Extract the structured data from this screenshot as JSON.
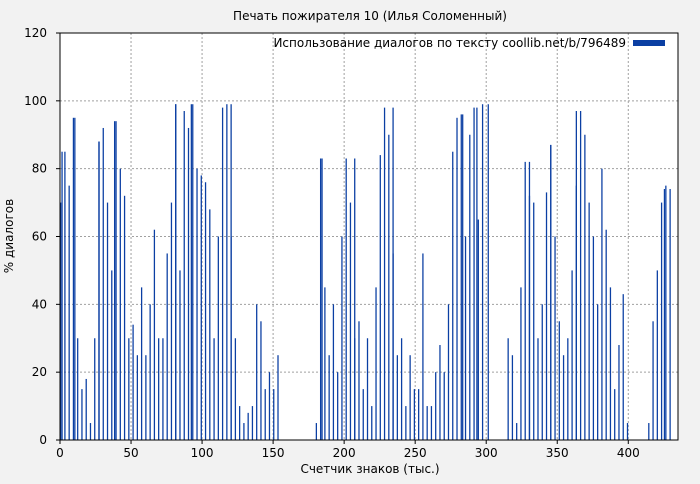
{
  "chart_data": {
    "type": "bar",
    "title": "Печать пожирателя 10 (Илья Соломенный)",
    "xlabel": "Счетчик знаков (тыс.)",
    "ylabel": "% диалогов",
    "xlim": [
      0,
      435
    ],
    "ylim": [
      0,
      120
    ],
    "x_ticks": [
      0,
      50,
      100,
      150,
      200,
      250,
      300,
      350,
      400
    ],
    "y_ticks": [
      0,
      20,
      40,
      60,
      80,
      100,
      120
    ],
    "grid": true,
    "legend_position": "top-right",
    "series": [
      {
        "name": "Использование диалогов по тексту coollib.net/b/796489",
        "color": "#0b3fa3",
        "bar_width": 0.9,
        "x": [
          0,
          3,
          6,
          9,
          12,
          15,
          18,
          21,
          24,
          27,
          30,
          33,
          36,
          39,
          42,
          45,
          48,
          51,
          54,
          57,
          60,
          63,
          66,
          69,
          72,
          75,
          78,
          81,
          84,
          87,
          90,
          93,
          96,
          99,
          102,
          105,
          108,
          111,
          114,
          117,
          120,
          123,
          126,
          129,
          132,
          135,
          138,
          141,
          144,
          147,
          150,
          153,
          156,
          159,
          162,
          165,
          168,
          171,
          174,
          177,
          180,
          183,
          186,
          189,
          192,
          195,
          198,
          201,
          204,
          207,
          210,
          213,
          216,
          219,
          222,
          225,
          228,
          231,
          234,
          237,
          240,
          243,
          246,
          249,
          252,
          255,
          258,
          261,
          264,
          267,
          270,
          273,
          276,
          279,
          282,
          285,
          288,
          291,
          294,
          297,
          300,
          303,
          306,
          309,
          312,
          315,
          318,
          321,
          324,
          327,
          330,
          333,
          336,
          339,
          342,
          345,
          348,
          351,
          354,
          357,
          360,
          363,
          366,
          369,
          372,
          375,
          378,
          381,
          384,
          387,
          390,
          393,
          396,
          399,
          402,
          405,
          408,
          411,
          414,
          417,
          420,
          423,
          426,
          429
        ],
        "values": [
          70,
          85,
          75,
          95,
          30,
          15,
          18,
          5,
          30,
          88,
          92,
          70,
          50,
          94,
          80,
          72,
          30,
          34,
          25,
          45,
          25,
          40,
          62,
          30,
          30,
          55,
          70,
          99,
          50,
          97,
          92,
          99,
          80,
          78,
          76,
          68,
          30,
          60,
          98,
          99,
          60,
          30,
          10,
          5,
          8,
          10,
          40,
          35,
          15,
          20,
          15,
          25,
          0,
          0,
          0,
          0,
          0,
          0,
          0,
          0,
          5,
          83,
          45,
          25,
          40,
          20,
          60,
          83,
          70,
          30,
          35,
          15,
          30,
          10,
          45,
          84,
          98,
          90,
          55,
          25,
          30,
          10,
          25,
          15,
          15,
          55,
          10,
          10,
          20,
          28,
          20,
          40,
          85,
          95,
          96,
          60,
          90,
          98,
          65,
          99,
          0,
          0,
          0,
          0,
          0,
          30,
          25,
          5,
          45,
          82,
          72,
          70,
          30,
          40,
          73,
          87,
          60,
          35,
          25,
          30,
          50,
          75,
          97,
          90,
          70,
          60,
          40,
          80,
          62,
          45,
          15,
          28,
          43,
          5,
          0,
          0,
          0,
          0,
          5,
          35,
          50,
          70,
          75,
          74
        ],
        "peaks": [
          {
            "x": 1,
            "value": 85
          },
          {
            "x": 10,
            "value": 95
          },
          {
            "x": 27,
            "value": 88
          },
          {
            "x": 38,
            "value": 94
          },
          {
            "x": 81,
            "value": 99
          },
          {
            "x": 92,
            "value": 99
          },
          {
            "x": 120,
            "value": 99
          },
          {
            "x": 184,
            "value": 83
          },
          {
            "x": 207,
            "value": 83
          },
          {
            "x": 234,
            "value": 98
          },
          {
            "x": 283,
            "value": 96
          },
          {
            "x": 293,
            "value": 98
          },
          {
            "x": 301,
            "value": 99
          },
          {
            "x": 330,
            "value": 82
          },
          {
            "x": 345,
            "value": 87
          },
          {
            "x": 363,
            "value": 97
          },
          {
            "x": 425,
            "value": 74
          }
        ]
      }
    ]
  }
}
